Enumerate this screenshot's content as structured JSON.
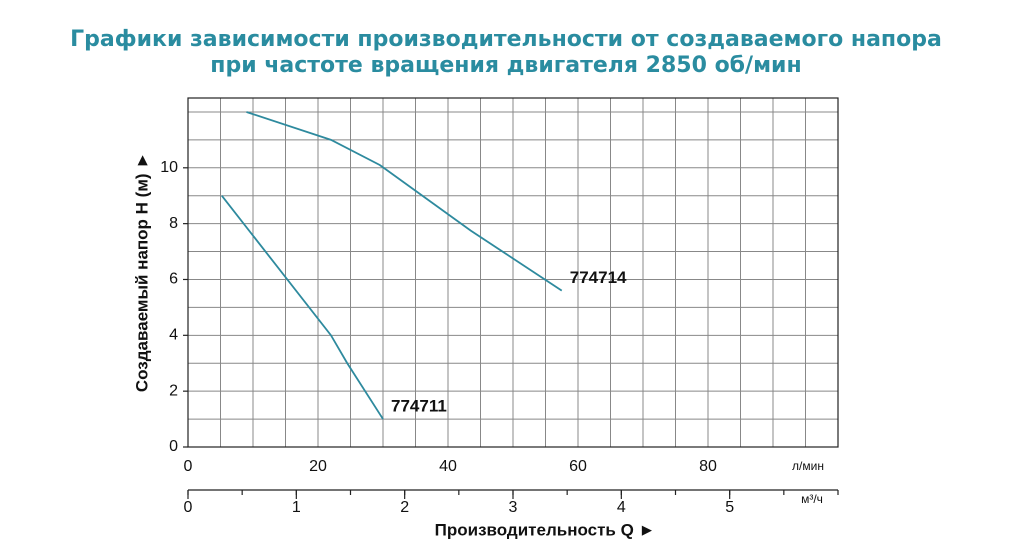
{
  "chart_data": {
    "type": "line",
    "title": "Графики зависимости производительности от создаваемого напора",
    "subtitle": "при частоте вращения двигателя 2850 об/мин",
    "xlabel": "Производительность Q ►",
    "ylabel": "Создаваемый напор Н (м) ►",
    "xunit": "л/мин",
    "x2unit": "м³/ч",
    "xlim": [
      0,
      100
    ],
    "xticks": [
      0,
      20,
      40,
      60,
      80
    ],
    "ylim": [
      0,
      12.5
    ],
    "yticks": [
      0,
      2,
      4,
      6,
      8,
      10
    ],
    "x2lim": [
      0,
      6
    ],
    "x2ticks": [
      0,
      1,
      2,
      3,
      4,
      5
    ],
    "x2minor_step": 0.5,
    "grid": true,
    "xgrid_step": 5,
    "ygrid_step": 1,
    "series": [
      {
        "name": "774711",
        "color": "#2e8a9e",
        "x": [
          5.2,
          22,
          24.5,
          30
        ],
        "values": [
          9,
          4,
          3,
          1
        ]
      },
      {
        "name": "774714",
        "color": "#2e8a9e",
        "x": [
          9,
          22,
          29.5,
          43.5,
          57.5
        ],
        "values": [
          12,
          11,
          10.1,
          7.75,
          5.6
        ]
      }
    ]
  }
}
